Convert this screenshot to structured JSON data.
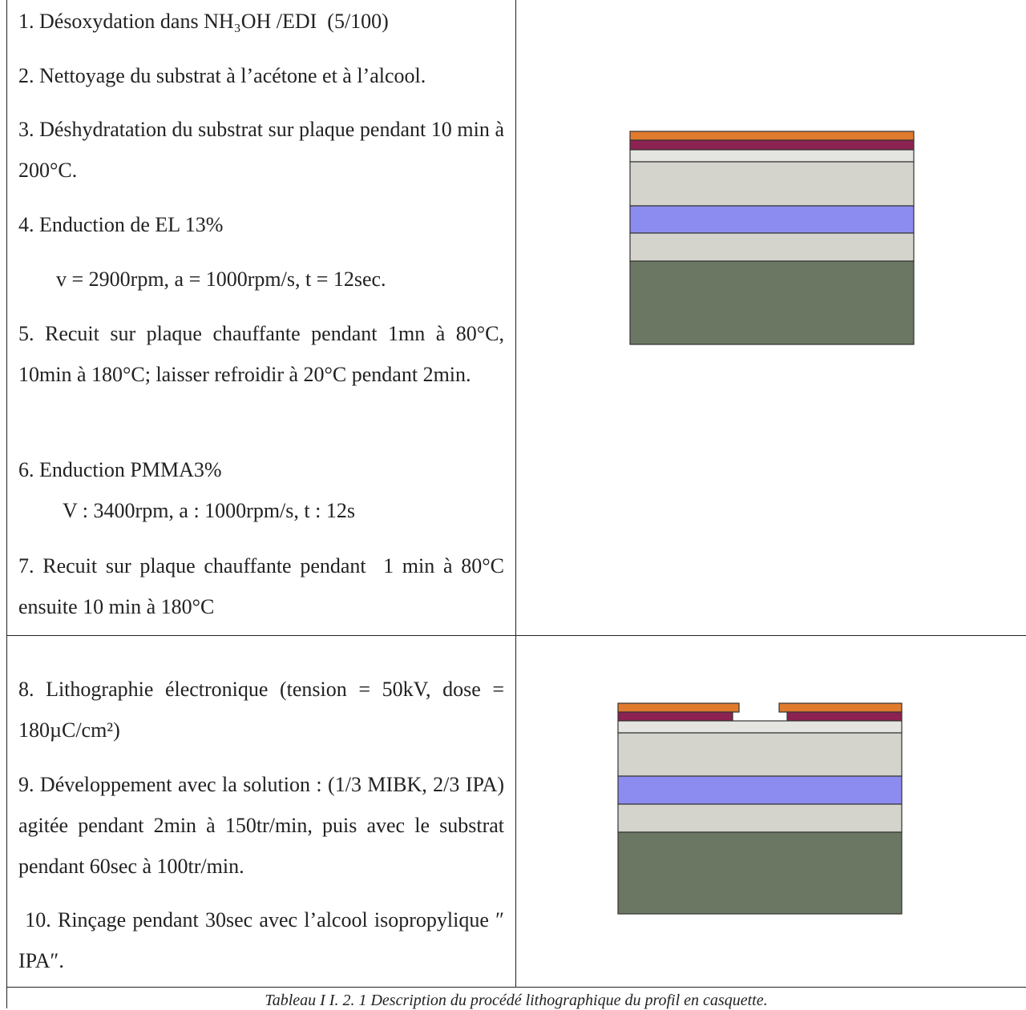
{
  "table": {
    "rows": [
      {
        "steps": [
          "1. Désoxydation dans NH₃OH /EDI  (5/100)",
          "2. Nettoyage du substrat à l’acétone et à l’alcool.",
          "3. Déshydratation du substrat sur plaque pendant 10 min à 200°C.",
          "4. Enduction de EL 13%",
          "v = 2900rpm, a = 1000rpm/s, t = 12sec.",
          "5. Recuit sur plaque chauffante pendant 1mn à 80°C, 10min à 180°C; laisser refroidir à 20°C pendant 2min.",
          "6. Enduction PMMA3%",
          "V : 3400rpm, a : 1000rpm/s, t : 12s",
          "7. Recuit sur plaque chauffante pendant  1 min à 80°C ensuite 10 min à 180°C"
        ]
      },
      {
        "steps": [
          "8. Lithographie électronique (tension = 50kV, dose = 180µC/cm²)",
          "9. Développement avec la solution : (1/3 MIBK, 2/3 IPA) agitée pendant 2min à 150tr/min, puis avec le substrat pendant 60sec à 100tr/min.",
          " 10. Rinçage pendant 30sec avec l’alcool isopropylique ″ IPA″."
        ]
      }
    ],
    "caption": "Tableau I I. 2. 1 Description du procédé lithographique du profil en casquette."
  }
}
